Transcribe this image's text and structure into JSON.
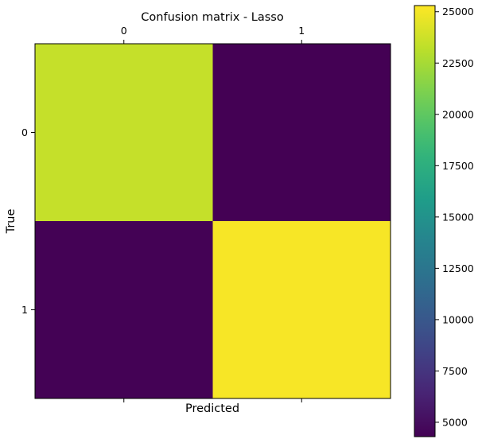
{
  "chart_data": {
    "type": "heatmap",
    "title": "Confusion matrix - Lasso",
    "xlabel": "Predicted",
    "ylabel": "True",
    "x_categories": [
      "0",
      "1"
    ],
    "y_categories": [
      "0",
      "1"
    ],
    "values": [
      [
        23500,
        4300
      ],
      [
        4350,
        25100
      ]
    ],
    "colormap": "viridis",
    "colorbar": {
      "range": [
        4300,
        25300
      ],
      "ticks": [
        5000,
        7500,
        10000,
        12500,
        15000,
        17500,
        20000,
        22500,
        25000
      ],
      "tick_labels": [
        "5000",
        "7500",
        "10000",
        "12500",
        "15000",
        "17500",
        "20000",
        "22500",
        "25000"
      ]
    },
    "x_tick_position": "top"
  }
}
